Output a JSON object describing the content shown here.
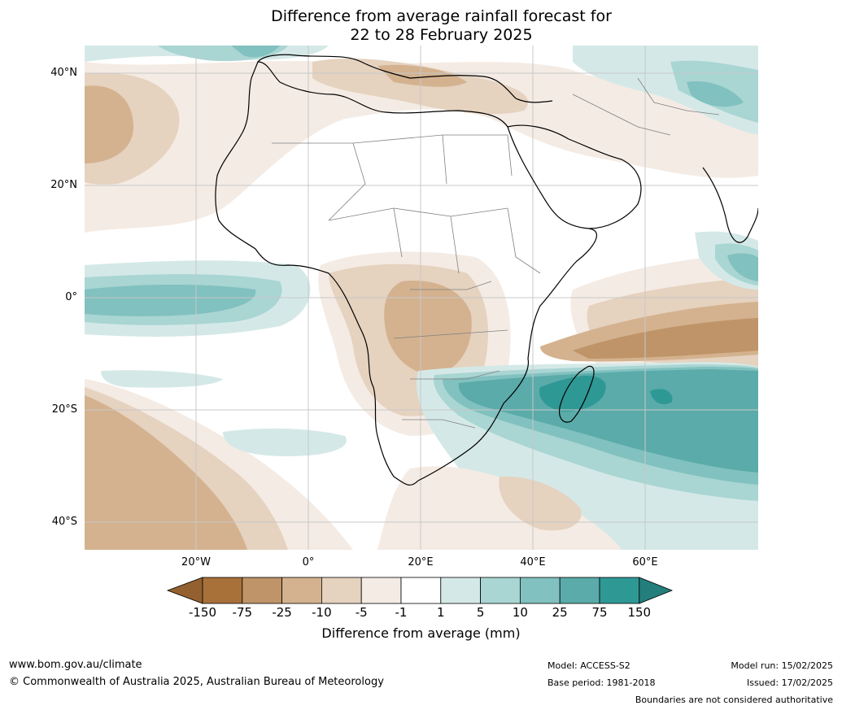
{
  "title": {
    "line1": "Difference from average rainfall forecast for",
    "line2": "22 to 28 February 2025"
  },
  "map": {
    "lat_labels": [
      "40°N",
      "20°N",
      "0°",
      "20°S",
      "40°S"
    ],
    "lon_labels": [
      "20°W",
      "0°",
      "20°E",
      "40°E",
      "60°E"
    ]
  },
  "colorbar": {
    "ticks": [
      "-150",
      "-75",
      "-25",
      "-10",
      "-5",
      "-1",
      "1",
      "5",
      "10",
      "25",
      "75",
      "150"
    ],
    "colors": [
      "#a8713a",
      "#bf9468",
      "#d4b28f",
      "#e5d2bf",
      "#f4ebe4",
      "#ffffff",
      "#d4e9e7",
      "#a9d5d3",
      "#81c1bf",
      "#5aaba9",
      "#2e9895"
    ],
    "extend_low": "#946030",
    "extend_high": "#237e7c",
    "label": "Difference from average (mm)"
  },
  "footer": {
    "website": "www.bom.gov.au/climate",
    "copyright": "© Commonwealth of Australia 2025, Australian Bureau of Meteorology",
    "model": "Model: ACCESS-S2",
    "base_period": "Base period: 1981-2018",
    "model_run": "Model run: 15/02/2025",
    "issued": "Issued: 17/02/2025",
    "disclaimer": "Boundaries are not considered authoritative"
  }
}
